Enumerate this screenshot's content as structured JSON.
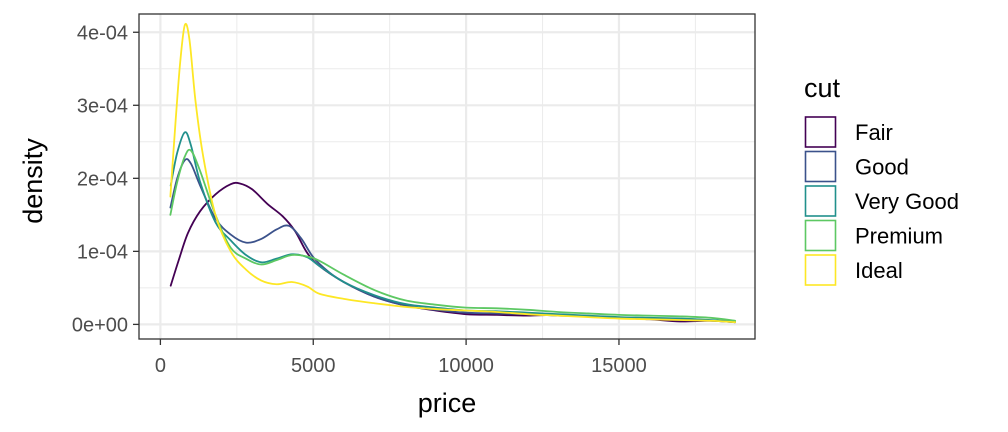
{
  "chart_data": {
    "type": "line",
    "xlabel": "price",
    "ylabel": "density",
    "xlim": [
      -700,
      19450
    ],
    "ylim": [
      -2e-05,
      0.000425
    ],
    "x_ticks": [
      0,
      5000,
      10000,
      15000
    ],
    "x_tick_labels": [
      "0",
      "5000",
      "10000",
      "15000"
    ],
    "x_minor_ticks": [
      2500,
      7500,
      12500,
      17500
    ],
    "y_ticks": [
      0,
      0.0001,
      0.0002,
      0.0003,
      0.0004
    ],
    "y_tick_labels": [
      "0e+00",
      "1e-04",
      "2e-04",
      "3e-04",
      "4e-04"
    ],
    "y_minor_ticks": [
      5e-05,
      0.00015,
      0.00025,
      0.00035
    ],
    "grid": true,
    "legend": {
      "title": "cut",
      "position": "right"
    },
    "series": [
      {
        "name": "Fair",
        "color": "#440154",
        "points": [
          [
            337,
            5.3e-05
          ],
          [
            600,
            8.8e-05
          ],
          [
            900,
            0.000125
          ],
          [
            1300,
            0.000155
          ],
          [
            1800,
            0.000178
          ],
          [
            2300,
            0.000192
          ],
          [
            2600,
            0.000193
          ],
          [
            3000,
            0.000185
          ],
          [
            3500,
            0.000165
          ],
          [
            4000,
            0.000148
          ],
          [
            4400,
            0.000128
          ],
          [
            4800,
            9.8e-05
          ],
          [
            5200,
            8e-05
          ],
          [
            6000,
            5.8e-05
          ],
          [
            7000,
            3.8e-05
          ],
          [
            8000,
            2.6e-05
          ],
          [
            9000,
            1.9e-05
          ],
          [
            10000,
            1.4e-05
          ],
          [
            11000,
            1.3e-05
          ],
          [
            12000,
            1.2e-05
          ],
          [
            13000,
            1.3e-05
          ],
          [
            14000,
            1.1e-05
          ],
          [
            15000,
            9e-06
          ],
          [
            16000,
            7e-06
          ],
          [
            17000,
            4e-06
          ],
          [
            18000,
            5e-06
          ],
          [
            18800,
            3e-06
          ]
        ]
      },
      {
        "name": "Good",
        "color": "#3B528B",
        "points": [
          [
            327,
            0.00016
          ],
          [
            550,
            0.0002
          ],
          [
            800,
            0.000225
          ],
          [
            1000,
            0.00022
          ],
          [
            1300,
            0.00019
          ],
          [
            1800,
            0.000145
          ],
          [
            2300,
            0.000123
          ],
          [
            2800,
            0.000112
          ],
          [
            3300,
            0.000117
          ],
          [
            3800,
            0.00013
          ],
          [
            4200,
            0.000135
          ],
          [
            4600,
            0.000118
          ],
          [
            5000,
            9.2e-05
          ],
          [
            5500,
            7.2e-05
          ],
          [
            6000,
            5.8e-05
          ],
          [
            7000,
            3.8e-05
          ],
          [
            8000,
            2.6e-05
          ],
          [
            9000,
            2e-05
          ],
          [
            10000,
            1.6e-05
          ],
          [
            11000,
            1.5e-05
          ],
          [
            12000,
            1.4e-05
          ],
          [
            13000,
            1.2e-05
          ],
          [
            14000,
            1.1e-05
          ],
          [
            15000,
            9e-06
          ],
          [
            16000,
            8e-06
          ],
          [
            17000,
            6e-06
          ],
          [
            18000,
            5e-06
          ],
          [
            18800,
            3e-06
          ]
        ]
      },
      {
        "name": "Very Good",
        "color": "#21908C",
        "points": [
          [
            336,
            0.00019
          ],
          [
            550,
            0.000235
          ],
          [
            800,
            0.000263
          ],
          [
            1000,
            0.000245
          ],
          [
            1300,
            0.000195
          ],
          [
            1800,
            0.00014
          ],
          [
            2300,
            0.000115
          ],
          [
            2800,
            9.5e-05
          ],
          [
            3300,
            8.5e-05
          ],
          [
            3800,
            9e-05
          ],
          [
            4300,
            9.6e-05
          ],
          [
            4800,
            9.2e-05
          ],
          [
            5200,
            8e-05
          ],
          [
            6000,
            5.8e-05
          ],
          [
            7000,
            4e-05
          ],
          [
            8000,
            2.8e-05
          ],
          [
            9000,
            2.3e-05
          ],
          [
            10000,
            1.9e-05
          ],
          [
            11000,
            1.8e-05
          ],
          [
            12000,
            1.6e-05
          ],
          [
            13000,
            1.4e-05
          ],
          [
            14000,
            1.2e-05
          ],
          [
            15000,
            1e-05
          ],
          [
            16000,
            9e-06
          ],
          [
            17000,
            8e-06
          ],
          [
            18000,
            6e-06
          ],
          [
            18800,
            4e-06
          ]
        ]
      },
      {
        "name": "Premium",
        "color": "#5DC863",
        "points": [
          [
            326,
            0.00015
          ],
          [
            550,
            0.000195
          ],
          [
            800,
            0.00023
          ],
          [
            1000,
            0.000238
          ],
          [
            1300,
            0.00021
          ],
          [
            1800,
            0.00015
          ],
          [
            2300,
            0.000105
          ],
          [
            2800,
            9e-05
          ],
          [
            3300,
            8.2e-05
          ],
          [
            3800,
            8.8e-05
          ],
          [
            4300,
            9.5e-05
          ],
          [
            4800,
            9.3e-05
          ],
          [
            5200,
            8.7e-05
          ],
          [
            6000,
            6.8e-05
          ],
          [
            7000,
            4.7e-05
          ],
          [
            8000,
            3.3e-05
          ],
          [
            9000,
            2.7e-05
          ],
          [
            10000,
            2.3e-05
          ],
          [
            11000,
            2.2e-05
          ],
          [
            12000,
            2e-05
          ],
          [
            13000,
            1.7e-05
          ],
          [
            14000,
            1.5e-05
          ],
          [
            15000,
            1.3e-05
          ],
          [
            16000,
            1.2e-05
          ],
          [
            17000,
            1.1e-05
          ],
          [
            18000,
            9e-06
          ],
          [
            18800,
            5e-06
          ]
        ]
      },
      {
        "name": "Ideal",
        "color": "#FDE725",
        "points": [
          [
            326,
            0.000175
          ],
          [
            500,
            0.00028
          ],
          [
            650,
            0.00036
          ],
          [
            800,
            0.00041
          ],
          [
            950,
            0.00039
          ],
          [
            1150,
            0.000305
          ],
          [
            1400,
            0.00023
          ],
          [
            1800,
            0.00015
          ],
          [
            2300,
            0.0001
          ],
          [
            2800,
            7.5e-05
          ],
          [
            3300,
            6e-05
          ],
          [
            3800,
            5.5e-05
          ],
          [
            4300,
            5.8e-05
          ],
          [
            4800,
            5.2e-05
          ],
          [
            5200,
            4.2e-05
          ],
          [
            6000,
            3.5e-05
          ],
          [
            7000,
            2.9e-05
          ],
          [
            8000,
            2.4e-05
          ],
          [
            9000,
            2.1e-05
          ],
          [
            10000,
            1.9e-05
          ],
          [
            11000,
            1.7e-05
          ],
          [
            12000,
            1.4e-05
          ],
          [
            13000,
            1.2e-05
          ],
          [
            14000,
            1e-05
          ],
          [
            15000,
            8e-06
          ],
          [
            16000,
            7e-06
          ],
          [
            17000,
            6e-06
          ],
          [
            18000,
            5e-06
          ],
          [
            18800,
            3e-06
          ]
        ]
      }
    ]
  }
}
